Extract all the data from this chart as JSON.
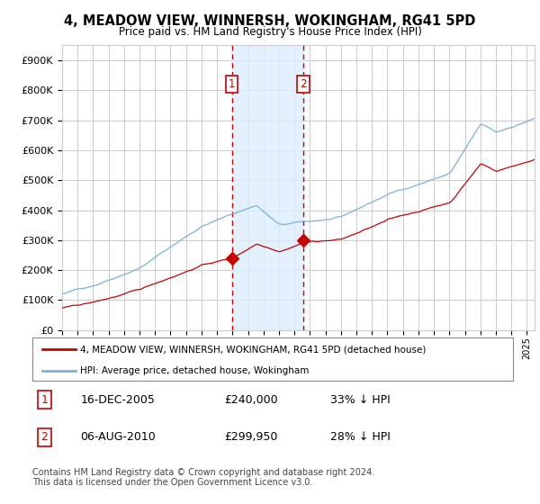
{
  "title": "4, MEADOW VIEW, WINNERSH, WOKINGHAM, RG41 5PD",
  "subtitle": "Price paid vs. HM Land Registry's House Price Index (HPI)",
  "ylim": [
    0,
    950000
  ],
  "xlim_start": 1995.0,
  "xlim_end": 2025.5,
  "sale1_date": 2005.96,
  "sale1_price": 240000,
  "sale1_label": "1",
  "sale2_date": 2010.58,
  "sale2_price": 299950,
  "sale2_label": "2",
  "legend_line1": "4, MEADOW VIEW, WINNERSH, WOKINGHAM, RG41 5PD (detached house)",
  "legend_line2": "HPI: Average price, detached house, Wokingham",
  "footnote": "Contains HM Land Registry data © Crown copyright and database right 2024.\nThis data is licensed under the Open Government Licence v3.0.",
  "hpi_color": "#7ab3d4",
  "sale_color": "#cc0000",
  "shade_color": "#ddeeff",
  "marker_box_color": "#cc0000",
  "grid_color": "#cccccc",
  "background_color": "#ffffff",
  "sale1_info": "16-DEC-2005",
  "sale1_price_str": "£240,000",
  "sale1_pct": "33% ↓ HPI",
  "sale2_info": "06-AUG-2010",
  "sale2_price_str": "£299,950",
  "sale2_pct": "28% ↓ HPI"
}
